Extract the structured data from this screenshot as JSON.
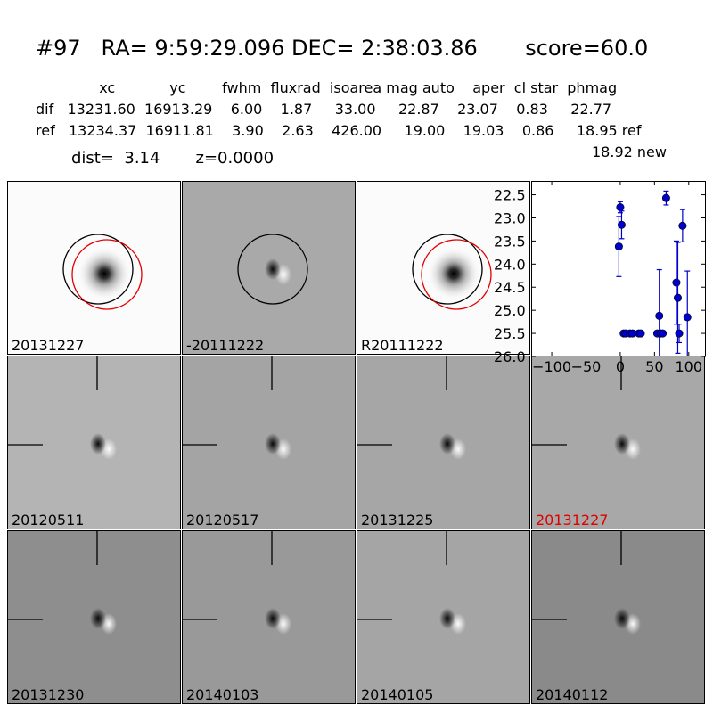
{
  "header": {
    "title": "#97   RA= 9:59:29.096 DEC= 2:38:03.86       score=60.0",
    "columns_line": "              xc            yc        fwhm  fluxrad  isoarea mag auto    aper  cl star  phmag",
    "dif_line": "dif   13231.60  16913.29    6.00    1.87     33.00     22.87    23.07    0.83     22.77",
    "ref_line": "ref   13234.37  16911.81    3.90    2.63    426.00     19.00    19.03    0.86     18.95 ref",
    "dist_line": "dist=  3.14       z=0.0000",
    "new_line": "18.92 new"
  },
  "panels": [
    {
      "label": "20131227",
      "kind": "new",
      "bg": "#fbfbfb",
      "red_label": false
    },
    {
      "label": "-20111222",
      "kind": "diff",
      "bg": "#a9a9a9",
      "red_label": false
    },
    {
      "label": "R20111222",
      "kind": "ref",
      "bg": "#fbfbfb",
      "red_label": false
    },
    {
      "label": "20120511",
      "kind": "stamp",
      "bg": "#b4b4b4",
      "red_label": false
    },
    {
      "label": "20120517",
      "kind": "stamp",
      "bg": "#a4a4a4",
      "red_label": false
    },
    {
      "label": "20131225",
      "kind": "stamp",
      "bg": "#a6a6a6",
      "red_label": false
    },
    {
      "label": "20131227",
      "kind": "stamp",
      "bg": "#a8a8a8",
      "red_label": true
    },
    {
      "label": "20131230",
      "kind": "stamp",
      "bg": "#8e8e8e",
      "red_label": false
    },
    {
      "label": "20140103",
      "kind": "stamp",
      "bg": "#999999",
      "red_label": false
    },
    {
      "label": "20140105",
      "kind": "stamp",
      "bg": "#a5a5a5",
      "red_label": false
    },
    {
      "label": "20140112",
      "kind": "stamp",
      "bg": "#8a8a8a",
      "red_label": false
    }
  ],
  "chart_data": {
    "type": "scatter",
    "title": "",
    "xlabel": "",
    "ylabel": "",
    "xlim": [
      -130,
      125
    ],
    "ylim": [
      26.0,
      22.2
    ],
    "y_inverted": true,
    "xticks": [
      -100,
      -50,
      0,
      50,
      100
    ],
    "xtick_labels": [
      "−100",
      "−50",
      "0",
      "50",
      "100"
    ],
    "yticks": [
      22.5,
      23.0,
      23.5,
      24.0,
      24.5,
      25.0,
      25.5,
      26.0
    ],
    "ytick_labels": [
      "22.5",
      "23.0",
      "23.5",
      "24.0",
      "24.5",
      "25.0",
      "25.5",
      "26.0"
    ],
    "color": "#0000cc",
    "points": [
      {
        "x": -2,
        "y": 23.62,
        "err": 0.65
      },
      {
        "x": 0,
        "y": 22.77,
        "err": 0.12
      },
      {
        "x": 2,
        "y": 23.15,
        "err": 0.3
      },
      {
        "x": 5,
        "y": 25.5,
        "err": 0
      },
      {
        "x": 8,
        "y": 25.5,
        "err": 0
      },
      {
        "x": 14,
        "y": 25.5,
        "err": 0
      },
      {
        "x": 18,
        "y": 25.5,
        "err": 0
      },
      {
        "x": 27,
        "y": 25.5,
        "err": 0
      },
      {
        "x": 30,
        "y": 25.5,
        "err": 0
      },
      {
        "x": 54,
        "y": 25.5,
        "err": 0
      },
      {
        "x": 57,
        "y": 25.12,
        "err": 1.0
      },
      {
        "x": 59,
        "y": 25.5,
        "err": 0
      },
      {
        "x": 62,
        "y": 25.5,
        "err": 0
      },
      {
        "x": 67,
        "y": 22.57,
        "err": 0.15
      },
      {
        "x": 82,
        "y": 24.4,
        "err": 0.9
      },
      {
        "x": 84,
        "y": 24.73,
        "err": 1.2
      },
      {
        "x": 86,
        "y": 25.5,
        "err": 0.2
      },
      {
        "x": 91,
        "y": 23.17,
        "err": 0.35
      },
      {
        "x": 98,
        "y": 25.15,
        "err": 1.0
      }
    ]
  }
}
